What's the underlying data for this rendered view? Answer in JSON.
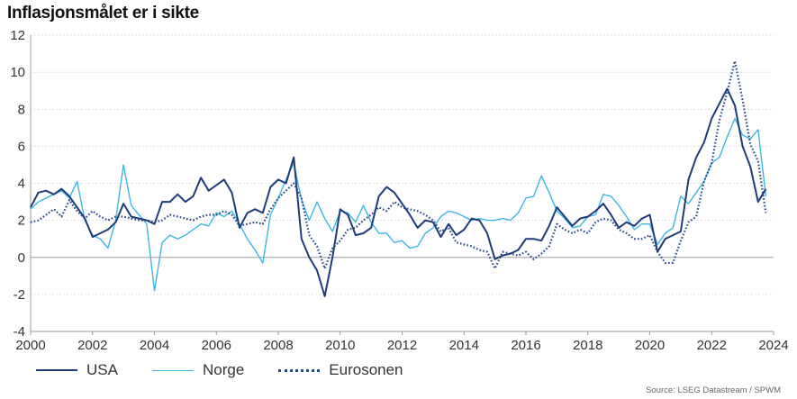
{
  "title": "Inflasjonsmålet er i sikte",
  "source": "Source: LSEG Datastream / SPWM",
  "colors": {
    "usa": "#1f3c7a",
    "norge": "#3fb7e3",
    "eurosonen": "#2a4a8c",
    "grid": "#c8c8c8",
    "zero": "#b0b0b0"
  },
  "legend": [
    {
      "key": "usa",
      "label": "USA",
      "style": "solid"
    },
    {
      "key": "norge",
      "label": "Norge",
      "style": "solid"
    },
    {
      "key": "eurosonen",
      "label": "Eurosonen",
      "style": "dotted"
    }
  ],
  "chart_data": {
    "type": "line",
    "title": "Inflasjonsmålet er i sikte",
    "xlabel": "",
    "ylabel": "",
    "xlim": [
      2000,
      2024
    ],
    "ylim": [
      -4,
      12
    ],
    "xticks": [
      2000,
      2002,
      2004,
      2006,
      2008,
      2010,
      2012,
      2014,
      2016,
      2018,
      2020,
      2022,
      2024
    ],
    "yticks": [
      -4,
      -2,
      0,
      2,
      4,
      6,
      8,
      10,
      12
    ],
    "grid": "horizontal dotted",
    "legend_position": "bottom-left",
    "series": [
      {
        "key": "usa",
        "name": "USA",
        "x": [
          2000.0,
          2000.25,
          2000.5,
          2000.75,
          2001.0,
          2001.25,
          2001.5,
          2001.75,
          2002.0,
          2002.25,
          2002.5,
          2002.75,
          2003.0,
          2003.25,
          2003.5,
          2003.75,
          2004.0,
          2004.25,
          2004.5,
          2004.75,
          2005.0,
          2005.25,
          2005.5,
          2005.75,
          2006.0,
          2006.25,
          2006.5,
          2006.75,
          2007.0,
          2007.25,
          2007.5,
          2007.75,
          2008.0,
          2008.25,
          2008.5,
          2008.75,
          2009.0,
          2009.25,
          2009.5,
          2009.75,
          2010.0,
          2010.25,
          2010.5,
          2010.75,
          2011.0,
          2011.25,
          2011.5,
          2011.75,
          2012.0,
          2012.25,
          2012.5,
          2012.75,
          2013.0,
          2013.25,
          2013.5,
          2013.75,
          2014.0,
          2014.25,
          2014.5,
          2014.75,
          2015.0,
          2015.25,
          2015.5,
          2015.75,
          2016.0,
          2016.25,
          2016.5,
          2016.75,
          2017.0,
          2017.25,
          2017.5,
          2017.75,
          2018.0,
          2018.25,
          2018.5,
          2018.75,
          2019.0,
          2019.25,
          2019.5,
          2019.75,
          2020.0,
          2020.25,
          2020.5,
          2020.75,
          2021.0,
          2021.25,
          2021.5,
          2021.75,
          2022.0,
          2022.25,
          2022.5,
          2022.75,
          2023.0,
          2023.25,
          2023.5,
          2023.75
        ],
        "y": [
          2.7,
          3.5,
          3.6,
          3.4,
          3.7,
          3.3,
          2.7,
          2.1,
          1.1,
          1.3,
          1.5,
          1.9,
          2.9,
          2.2,
          2.1,
          2.0,
          1.8,
          3.0,
          3.0,
          3.4,
          3.0,
          3.3,
          4.3,
          3.6,
          3.9,
          4.2,
          3.5,
          1.6,
          2.4,
          2.6,
          2.4,
          3.8,
          4.2,
          4.0,
          5.4,
          1.0,
          0.0,
          -0.7,
          -2.1,
          0.0,
          2.6,
          2.3,
          1.2,
          1.3,
          1.6,
          3.3,
          3.8,
          3.5,
          2.9,
          2.3,
          1.6,
          2.0,
          1.9,
          1.1,
          1.8,
          1.2,
          1.5,
          2.1,
          2.0,
          1.3,
          -0.1,
          0.1,
          0.2,
          0.4,
          1.0,
          1.0,
          0.9,
          1.7,
          2.7,
          2.2,
          1.7,
          2.1,
          2.2,
          2.5,
          2.9,
          2.3,
          1.6,
          1.9,
          1.7,
          2.1,
          2.3,
          0.3,
          1.0,
          1.2,
          1.4,
          4.2,
          5.4,
          6.2,
          7.5,
          8.3,
          9.1,
          8.2,
          6.0,
          4.9,
          3.0,
          3.7
        ]
      },
      {
        "key": "norge",
        "name": "Norge",
        "x": [
          2000.0,
          2000.25,
          2000.5,
          2000.75,
          2001.0,
          2001.25,
          2001.5,
          2001.75,
          2002.0,
          2002.25,
          2002.5,
          2002.75,
          2003.0,
          2003.25,
          2003.5,
          2003.75,
          2004.0,
          2004.25,
          2004.5,
          2004.75,
          2005.0,
          2005.25,
          2005.5,
          2005.75,
          2006.0,
          2006.25,
          2006.5,
          2006.75,
          2007.0,
          2007.25,
          2007.5,
          2007.75,
          2008.0,
          2008.25,
          2008.5,
          2008.75,
          2009.0,
          2009.25,
          2009.5,
          2009.75,
          2010.0,
          2010.25,
          2010.5,
          2010.75,
          2011.0,
          2011.25,
          2011.5,
          2011.75,
          2012.0,
          2012.25,
          2012.5,
          2012.75,
          2013.0,
          2013.25,
          2013.5,
          2013.75,
          2014.0,
          2014.25,
          2014.5,
          2014.75,
          2015.0,
          2015.25,
          2015.5,
          2015.75,
          2016.0,
          2016.25,
          2016.5,
          2016.75,
          2017.0,
          2017.25,
          2017.5,
          2017.75,
          2018.0,
          2018.25,
          2018.5,
          2018.75,
          2019.0,
          2019.25,
          2019.5,
          2019.75,
          2020.0,
          2020.25,
          2020.5,
          2020.75,
          2021.0,
          2021.25,
          2021.5,
          2021.75,
          2022.0,
          2022.25,
          2022.5,
          2022.75,
          2023.0,
          2023.25,
          2023.5,
          2023.75
        ],
        "y": [
          2.6,
          3.0,
          3.2,
          3.4,
          3.6,
          3.2,
          4.1,
          2.0,
          1.2,
          1.0,
          0.5,
          2.0,
          5.0,
          2.8,
          2.3,
          1.8,
          -1.8,
          0.8,
          1.2,
          1.0,
          1.2,
          1.5,
          1.8,
          1.7,
          2.4,
          2.2,
          2.5,
          1.8,
          1.0,
          0.4,
          -0.3,
          2.3,
          3.2,
          4.2,
          5.1,
          3.1,
          2.0,
          3.0,
          2.1,
          1.4,
          2.5,
          2.4,
          1.9,
          2.8,
          1.9,
          1.3,
          1.3,
          0.8,
          0.9,
          0.5,
          0.6,
          1.3,
          1.6,
          2.2,
          2.5,
          2.4,
          2.2,
          2.0,
          2.1,
          2.0,
          2.0,
          2.1,
          2.0,
          2.4,
          3.2,
          3.3,
          4.4,
          3.5,
          2.5,
          2.1,
          1.6,
          1.7,
          2.2,
          2.3,
          3.4,
          3.3,
          2.8,
          2.2,
          1.5,
          1.8,
          1.8,
          0.7,
          1.3,
          1.6,
          3.3,
          2.9,
          3.5,
          4.1,
          5.1,
          5.4,
          6.5,
          7.5,
          6.6,
          6.4,
          6.9,
          3.3
        ]
      },
      {
        "key": "eurosonen",
        "name": "Eurosonen",
        "x": [
          2000.0,
          2000.25,
          2000.5,
          2000.75,
          2001.0,
          2001.25,
          2001.5,
          2001.75,
          2002.0,
          2002.25,
          2002.5,
          2002.75,
          2003.0,
          2003.25,
          2003.5,
          2003.75,
          2004.0,
          2004.25,
          2004.5,
          2004.75,
          2005.0,
          2005.25,
          2005.5,
          2005.75,
          2006.0,
          2006.25,
          2006.5,
          2006.75,
          2007.0,
          2007.25,
          2007.5,
          2007.75,
          2008.0,
          2008.25,
          2008.5,
          2008.75,
          2009.0,
          2009.25,
          2009.5,
          2009.75,
          2010.0,
          2010.25,
          2010.5,
          2010.75,
          2011.0,
          2011.25,
          2011.5,
          2011.75,
          2012.0,
          2012.25,
          2012.5,
          2012.75,
          2013.0,
          2013.25,
          2013.5,
          2013.75,
          2014.0,
          2014.25,
          2014.5,
          2014.75,
          2015.0,
          2015.25,
          2015.5,
          2015.75,
          2016.0,
          2016.25,
          2016.5,
          2016.75,
          2017.0,
          2017.25,
          2017.5,
          2017.75,
          2018.0,
          2018.25,
          2018.5,
          2018.75,
          2019.0,
          2019.25,
          2019.5,
          2019.75,
          2020.0,
          2020.25,
          2020.5,
          2020.75,
          2021.0,
          2021.25,
          2021.5,
          2021.75,
          2022.0,
          2022.25,
          2022.5,
          2022.75,
          2023.0,
          2023.25,
          2023.5,
          2023.75
        ],
        "y": [
          1.9,
          2.0,
          2.3,
          2.6,
          2.2,
          3.1,
          2.5,
          2.1,
          2.5,
          2.2,
          2.0,
          2.2,
          2.2,
          2.1,
          2.0,
          2.0,
          1.9,
          2.0,
          2.3,
          2.2,
          2.1,
          2.0,
          2.2,
          2.3,
          2.3,
          2.5,
          2.3,
          1.7,
          1.8,
          1.9,
          1.8,
          2.6,
          3.2,
          3.6,
          4.0,
          3.2,
          1.2,
          0.6,
          -0.6,
          0.5,
          0.9,
          1.5,
          1.6,
          2.0,
          2.3,
          2.7,
          2.5,
          3.0,
          2.7,
          2.6,
          2.5,
          2.3,
          2.0,
          1.4,
          1.6,
          0.8,
          0.7,
          0.6,
          0.4,
          0.3,
          -0.6,
          0.3,
          0.2,
          0.1,
          0.3,
          -0.1,
          0.2,
          0.6,
          1.8,
          1.5,
          1.3,
          1.5,
          1.3,
          1.9,
          2.1,
          2.0,
          1.5,
          1.3,
          1.0,
          1.0,
          1.2,
          0.3,
          -0.3,
          -0.3,
          0.9,
          1.9,
          2.2,
          4.1,
          5.1,
          7.4,
          8.9,
          10.6,
          8.5,
          6.1,
          5.2,
          2.4
        ]
      }
    ]
  }
}
